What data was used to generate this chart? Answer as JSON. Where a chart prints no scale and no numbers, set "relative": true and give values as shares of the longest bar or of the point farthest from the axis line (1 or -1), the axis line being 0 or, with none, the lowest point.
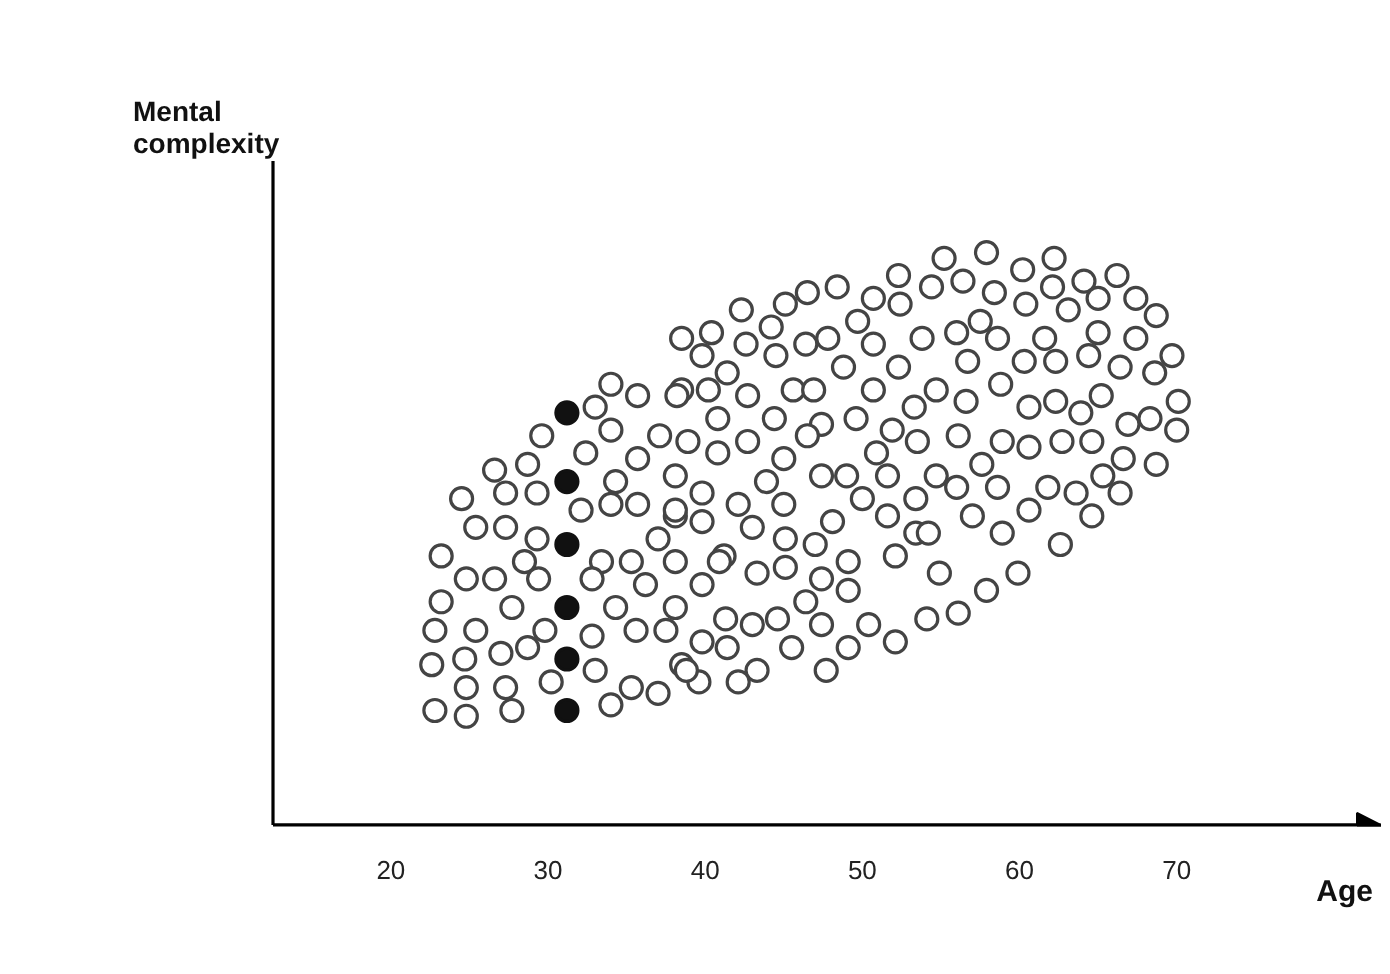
{
  "chart_data": {
    "type": "scatter",
    "xlabel": "Age",
    "ylabel": "Mental complexity",
    "relative": true,
    "marker": "circle",
    "grid": false,
    "xlim": [
      12.5,
      83
    ],
    "xticks": [
      20,
      30,
      40,
      50,
      60,
      70
    ],
    "series": [
      {
        "color": "#444444",
        "x": [
          55.2,
          57.9,
          62.2,
          60.2,
          66.2,
          64.1,
          56.4,
          54.4,
          52.3,
          52.4,
          50.7,
          48.4,
          46.5,
          45.1,
          42.3,
          58.4,
          60.4,
          62.1,
          63.1,
          65.0,
          67.4,
          68.7,
          69.7,
          68.6,
          70.1,
          70.0,
          68.7,
          68.3,
          66.9,
          66.6,
          66.4,
          65.3,
          64.6,
          62.6,
          63.6,
          61.8,
          60.6,
          59.9,
          57.9,
          58.9,
          57.0,
          56.1,
          54.1,
          52.1,
          54.9,
          53.4,
          52.1,
          50.0,
          51.6,
          49.1,
          49.1,
          47.4,
          46.4,
          47.4,
          49.1,
          50.4,
          45.5,
          47.7,
          45.1,
          43.3,
          45.1,
          43.0,
          41.2,
          39.8,
          41.3,
          43.0,
          44.6,
          39.8,
          41.4,
          43.3,
          42.1,
          39.6,
          38.5,
          38.1,
          38.1,
          39.8,
          38.1,
          39.8,
          42.1,
          43.9,
          45.0,
          45.0,
          47.4,
          49.0,
          48.1,
          47.0,
          51.6,
          50.9,
          53.4,
          54.7,
          56.0,
          57.6,
          58.6,
          54.2,
          58.9,
          60.6,
          62.7,
          64.6,
          65.2,
          63.9,
          62.3,
          60.6,
          58.8,
          60.3,
          62.3,
          64.4,
          66.4,
          67.4,
          65.0,
          61.6,
          58.6,
          57.5,
          56.0,
          56.7,
          54.7,
          56.6,
          56.1,
          53.5,
          53.3,
          51.9,
          49.6,
          47.4,
          46.5,
          44.4,
          42.7,
          40.8,
          38.9,
          40.8,
          42.7,
          40.2,
          38.5,
          41.4,
          39.8,
          38.5,
          40.4,
          42.6,
          44.2,
          44.5,
          46.4,
          47.8,
          49.7,
          50.7,
          48.8,
          52.3,
          53.8,
          50.7,
          45.6,
          46.9,
          34.0,
          35.7,
          38.2,
          33.0,
          29.6,
          34.0,
          37.1,
          32.4,
          28.7,
          26.6,
          35.7,
          38.1,
          34.3,
          24.5,
          27.3,
          29.3,
          32.1,
          34.0,
          35.7,
          25.4,
          27.3,
          29.3,
          37.0,
          23.2,
          28.5,
          33.4,
          35.3,
          24.8,
          26.6,
          29.4,
          32.8,
          36.2,
          23.2,
          27.7,
          34.3,
          22.8,
          25.4,
          27.0,
          28.7,
          29.8,
          32.8,
          35.6,
          37.5,
          22.6,
          24.7,
          33.0,
          38.8,
          22.8,
          24.8,
          27.3,
          24.8,
          27.7,
          30.2,
          34.0,
          35.3,
          37.0,
          38.1,
          40.9
        ],
        "values": [
          0.99,
          1.0,
          0.99,
          0.97,
          0.96,
          0.95,
          0.95,
          0.94,
          0.96,
          0.91,
          0.92,
          0.94,
          0.93,
          0.91,
          0.9,
          0.93,
          0.91,
          0.94,
          0.9,
          0.92,
          0.92,
          0.89,
          0.82,
          0.79,
          0.74,
          0.69,
          0.63,
          0.71,
          0.7,
          0.64,
          0.58,
          0.61,
          0.54,
          0.49,
          0.58,
          0.59,
          0.55,
          0.44,
          0.41,
          0.51,
          0.54,
          0.37,
          0.36,
          0.32,
          0.44,
          0.51,
          0.47,
          0.57,
          0.54,
          0.46,
          0.41,
          0.43,
          0.39,
          0.35,
          0.31,
          0.35,
          0.31,
          0.27,
          0.45,
          0.44,
          0.5,
          0.52,
          0.47,
          0.42,
          0.36,
          0.35,
          0.36,
          0.32,
          0.31,
          0.27,
          0.25,
          0.25,
          0.28,
          0.38,
          0.46,
          0.53,
          0.54,
          0.58,
          0.56,
          0.6,
          0.56,
          0.64,
          0.61,
          0.61,
          0.53,
          0.49,
          0.61,
          0.65,
          0.57,
          0.61,
          0.59,
          0.63,
          0.59,
          0.51,
          0.67,
          0.66,
          0.67,
          0.67,
          0.75,
          0.72,
          0.74,
          0.73,
          0.77,
          0.81,
          0.81,
          0.82,
          0.8,
          0.85,
          0.86,
          0.85,
          0.85,
          0.88,
          0.86,
          0.81,
          0.76,
          0.74,
          0.68,
          0.67,
          0.73,
          0.69,
          0.71,
          0.7,
          0.68,
          0.71,
          0.67,
          0.65,
          0.67,
          0.71,
          0.75,
          0.76,
          0.76,
          0.79,
          0.82,
          0.85,
          0.86,
          0.84,
          0.87,
          0.82,
          0.84,
          0.85,
          0.88,
          0.84,
          0.8,
          0.8,
          0.85,
          0.76,
          0.76,
          0.76,
          0.77,
          0.75,
          0.75,
          0.73,
          0.68,
          0.69,
          0.68,
          0.65,
          0.63,
          0.62,
          0.64,
          0.61,
          0.6,
          0.57,
          0.58,
          0.58,
          0.55,
          0.56,
          0.56,
          0.52,
          0.52,
          0.5,
          0.5,
          0.47,
          0.46,
          0.46,
          0.46,
          0.43,
          0.43,
          0.43,
          0.43,
          0.42,
          0.39,
          0.38,
          0.38,
          0.34,
          0.34,
          0.3,
          0.31,
          0.34,
          0.33,
          0.34,
          0.34,
          0.28,
          0.29,
          0.27,
          0.27,
          0.2,
          0.24,
          0.24,
          0.19,
          0.2,
          0.25,
          0.21,
          0.24,
          0.23,
          0.55,
          0.46
        ]
      },
      {
        "color": "#111111",
        "x": [
          31.2,
          31.2,
          31.2,
          31.2,
          31.2,
          31.2
        ],
        "values": [
          0.72,
          0.6,
          0.49,
          0.38,
          0.29,
          0.2
        ]
      }
    ]
  }
}
